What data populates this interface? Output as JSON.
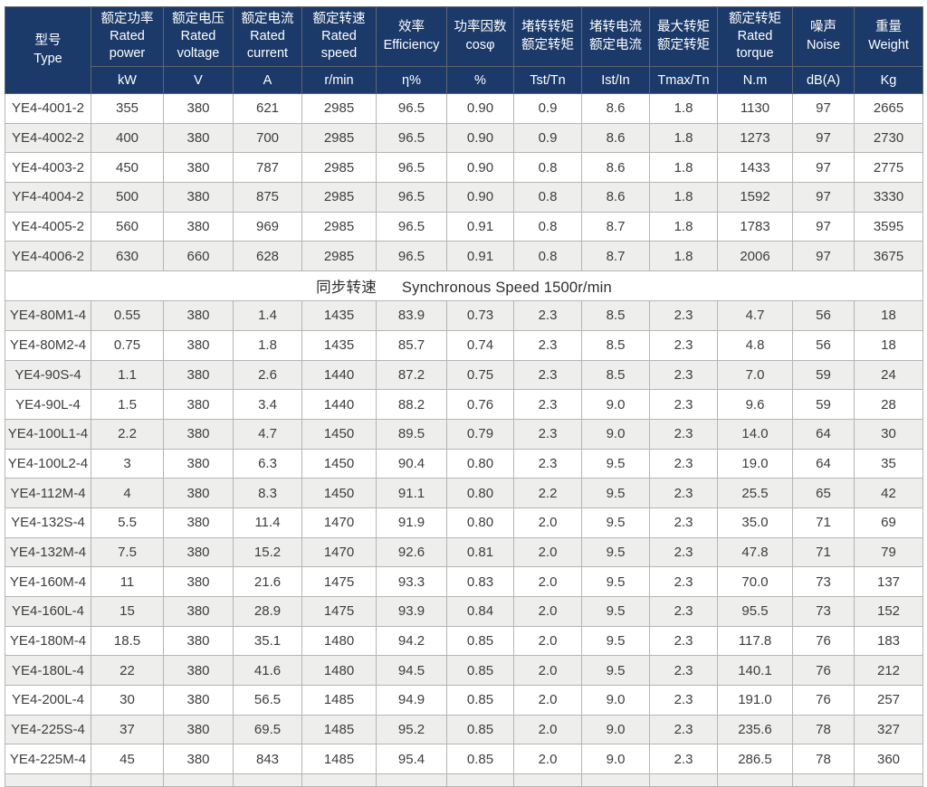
{
  "theme": {
    "header_bg": "#1b3a6a",
    "header_text": "#ffffff",
    "border_header": "#5f656d",
    "border_data": "#b5b5b5",
    "stripe_bg": "#eeeeec",
    "row_bg": "#ffffff",
    "text_color": "#3d3d3d"
  },
  "table": {
    "columns": [
      {
        "line1": "型号",
        "line2": "Type",
        "unit": ""
      },
      {
        "line1": "额定功率",
        "line2": "Rated power",
        "unit": "kW"
      },
      {
        "line1": "额定电压",
        "line2": "Rated voltage",
        "unit": "V"
      },
      {
        "line1": "额定电流",
        "line2": "Rated current",
        "unit": "A"
      },
      {
        "line1": "额定转速",
        "line2": "Rated speed",
        "unit": "r/min"
      },
      {
        "line1": "效率",
        "line2": "Efficiency",
        "unit": "η%"
      },
      {
        "line1": "功率因数",
        "line2": "cosφ",
        "unit": "%"
      },
      {
        "line1": "堵转转矩",
        "line2": "额定转矩",
        "unit": "Tst/Tn"
      },
      {
        "line1": "堵转电流",
        "line2": "额定电流",
        "unit": "Ist/In"
      },
      {
        "line1": "最大转矩",
        "line2": "额定转矩",
        "unit": "Tmax/Tn"
      },
      {
        "line1": "额定转矩",
        "line2": "Rated torque",
        "unit": "N.m"
      },
      {
        "line1": "噪声",
        "line2": "Noise",
        "unit": "dB(A)"
      },
      {
        "line1": "重量",
        "line2": "Weight",
        "unit": "Kg"
      }
    ],
    "sections": [
      {
        "header_zh": null,
        "header_en": null,
        "first_shade": "white",
        "rows": [
          [
            "YE4-4001-2",
            "355",
            "380",
            "621",
            "2985",
            "96.5",
            "0.90",
            "0.9",
            "8.6",
            "1.8",
            "1130",
            "97",
            "2665"
          ],
          [
            "YE4-4002-2",
            "400",
            "380",
            "700",
            "2985",
            "96.5",
            "0.90",
            "0.9",
            "8.6",
            "1.8",
            "1273",
            "97",
            "2730"
          ],
          [
            "YE4-4003-2",
            "450",
            "380",
            "787",
            "2985",
            "96.5",
            "0.90",
            "0.8",
            "8.6",
            "1.8",
            "1433",
            "97",
            "2775"
          ],
          [
            "YF4-4004-2",
            "500",
            "380",
            "875",
            "2985",
            "96.5",
            "0.90",
            "0.8",
            "8.6",
            "1.8",
            "1592",
            "97",
            "3330"
          ],
          [
            "YE4-4005-2",
            "560",
            "380",
            "969",
            "2985",
            "96.5",
            "0.91",
            "0.8",
            "8.7",
            "1.8",
            "1783",
            "97",
            "3595"
          ],
          [
            "YE4-4006-2",
            "630",
            "660",
            "628",
            "2985",
            "96.5",
            "0.91",
            "0.8",
            "8.7",
            "1.8",
            "2006",
            "97",
            "3675"
          ]
        ]
      },
      {
        "header_zh": "同步转速",
        "header_en": "Synchronous Speed 1500r/min",
        "first_shade": "gray",
        "rows": [
          [
            "YE4-80M1-4",
            "0.55",
            "380",
            "1.4",
            "1435",
            "83.9",
            "0.73",
            "2.3",
            "8.5",
            "2.3",
            "4.7",
            "56",
            "18"
          ],
          [
            "YE4-80M2-4",
            "0.75",
            "380",
            "1.8",
            "1435",
            "85.7",
            "0.74",
            "2.3",
            "8.5",
            "2.3",
            "4.8",
            "56",
            "18"
          ],
          [
            "YE4-90S-4",
            "1.1",
            "380",
            "2.6",
            "1440",
            "87.2",
            "0.75",
            "2.3",
            "8.5",
            "2.3",
            "7.0",
            "59",
            "24"
          ],
          [
            "YE4-90L-4",
            "1.5",
            "380",
            "3.4",
            "1440",
            "88.2",
            "0.76",
            "2.3",
            "9.0",
            "2.3",
            "9.6",
            "59",
            "28"
          ],
          [
            "YE4-100L1-4",
            "2.2",
            "380",
            "4.7",
            "1450",
            "89.5",
            "0.79",
            "2.3",
            "9.0",
            "2.3",
            "14.0",
            "64",
            "30"
          ],
          [
            "YE4-100L2-4",
            "3",
            "380",
            "6.3",
            "1450",
            "90.4",
            "0.80",
            "2.3",
            "9.5",
            "2.3",
            "19.0",
            "64",
            "35"
          ],
          [
            "YE4-112M-4",
            "4",
            "380",
            "8.3",
            "1450",
            "91.1",
            "0.80",
            "2.2",
            "9.5",
            "2.3",
            "25.5",
            "65",
            "42"
          ],
          [
            "YE4-132S-4",
            "5.5",
            "380",
            "11.4",
            "1470",
            "91.9",
            "0.80",
            "2.0",
            "9.5",
            "2.3",
            "35.0",
            "71",
            "69"
          ],
          [
            "YE4-132M-4",
            "7.5",
            "380",
            "15.2",
            "1470",
            "92.6",
            "0.81",
            "2.0",
            "9.5",
            "2.3",
            "47.8",
            "71",
            "79"
          ],
          [
            "YE4-160M-4",
            "11",
            "380",
            "21.6",
            "1475",
            "93.3",
            "0.83",
            "2.0",
            "9.5",
            "2.3",
            "70.0",
            "73",
            "137"
          ],
          [
            "YE4-160L-4",
            "15",
            "380",
            "28.9",
            "1475",
            "93.9",
            "0.84",
            "2.0",
            "9.5",
            "2.3",
            "95.5",
            "73",
            "152"
          ],
          [
            "YE4-180M-4",
            "18.5",
            "380",
            "35.1",
            "1480",
            "94.2",
            "0.85",
            "2.0",
            "9.5",
            "2.3",
            "117.8",
            "76",
            "183"
          ],
          [
            "YE4-180L-4",
            "22",
            "380",
            "41.6",
            "1480",
            "94.5",
            "0.85",
            "2.0",
            "9.5",
            "2.3",
            "140.1",
            "76",
            "212"
          ],
          [
            "YE4-200L-4",
            "30",
            "380",
            "56.5",
            "1485",
            "94.9",
            "0.85",
            "2.0",
            "9.0",
            "2.3",
            "191.0",
            "76",
            "257"
          ],
          [
            "YE4-225S-4",
            "37",
            "380",
            "69.5",
            "1485",
            "95.2",
            "0.85",
            "2.0",
            "9.0",
            "2.3",
            "235.6",
            "78",
            "327"
          ],
          [
            "YE4-225M-4",
            "45",
            "380",
            "843",
            "1485",
            "95.4",
            "0.85",
            "2.0",
            "9.0",
            "2.3",
            "286.5",
            "78",
            "360"
          ]
        ]
      }
    ]
  }
}
